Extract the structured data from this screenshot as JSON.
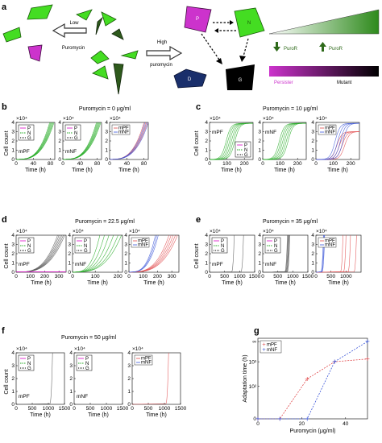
{
  "panel_labels": {
    "a": "a",
    "b": "b",
    "c": "c",
    "d": "d",
    "e": "e",
    "f": "f",
    "g": "g"
  },
  "schematic": {
    "low_label": "Low",
    "low_sub": "Puromycin",
    "high_label": "High",
    "high_sub": "puromycin",
    "cell_p": "P",
    "cell_n": "N",
    "cell_d": "D",
    "cell_g": "G",
    "puror_down": "PuroR",
    "puror_up": "PuroR",
    "persister": "Persister",
    "mutant": "Mutant",
    "colors": {
      "green": "#44dd22",
      "magenta": "#cc33cc",
      "navy": "#1a2f6b",
      "dark_green": "#2e5a1c",
      "black": "#000000"
    }
  },
  "legend": {
    "p": "P",
    "n": "N",
    "g": "G",
    "mpf": "mPF",
    "mnf": "mNF"
  },
  "labels": {
    "cell_count": "Cell count",
    "time": "Time (h)",
    "x104": "×10⁴",
    "mpf_lbl": "mPF",
    "mnf_lbl": "mNF",
    "adaptation": "Adaptation time (h)",
    "puromycin_axis": "Puromycin (μg/ml)"
  },
  "chart_data": [
    {
      "panel": "b",
      "type": "line",
      "title": "Puromycin = 0 μg/ml",
      "subplots": [
        {
          "name": "mPF",
          "xlim": [
            0,
            90
          ],
          "xticks": [
            0,
            40,
            80
          ],
          "ylim": [
            0,
            4
          ],
          "yticks": [
            0,
            1,
            2,
            3,
            4
          ],
          "series": [
            {
              "name": "G",
              "color": "#22aa22",
              "shape": "exp",
              "end_x": [
                78,
                80,
                82,
                84,
                86,
                88
              ]
            }
          ]
        },
        {
          "name": "mNF",
          "xlim": [
            0,
            90
          ],
          "xticks": [
            0,
            40,
            80
          ],
          "ylim": [
            0,
            4
          ],
          "yticks": [
            0,
            1,
            2,
            3,
            4
          ],
          "series": [
            {
              "name": "G",
              "color": "#22aa22",
              "shape": "exp",
              "end_x": [
                78,
                80,
                82,
                84,
                86,
                88
              ]
            }
          ]
        },
        {
          "name": "compare",
          "xlim": [
            0,
            90
          ],
          "xticks": [
            0,
            40,
            80
          ],
          "ylim": [
            0,
            4
          ],
          "yticks": [
            0,
            1,
            2,
            3,
            4
          ],
          "series": [
            {
              "name": "mPF",
              "color": "#e0484a",
              "shape": "exp",
              "end_x": [
                80,
                84,
                88
              ]
            },
            {
              "name": "mNF",
              "color": "#3a55d8",
              "shape": "exp",
              "end_x": [
                82,
                86,
                90
              ]
            }
          ]
        }
      ]
    },
    {
      "panel": "c",
      "type": "line",
      "title": "Puromycin = 10 μg/ml",
      "subplots": [
        {
          "name": "mPF",
          "xlim": [
            0,
            250
          ],
          "xticks": [
            0,
            100,
            200
          ],
          "ylim": [
            0,
            4
          ],
          "yticks": [
            0,
            1,
            2,
            3,
            4
          ],
          "series": [
            {
              "name": "G",
              "color": "#22aa22",
              "shape": "sigmoid",
              "plateau": 3.9,
              "mid_x": [
                95,
                105,
                115,
                125,
                135,
                145
              ]
            }
          ]
        },
        {
          "name": "mNF",
          "xlim": [
            0,
            250
          ],
          "xticks": [
            0,
            100,
            200
          ],
          "ylim": [
            0,
            4
          ],
          "yticks": [
            0,
            1,
            2,
            3,
            4
          ],
          "series": [
            {
              "name": "G",
              "color": "#22aa22",
              "shape": "sigmoid",
              "plateau": 3.9,
              "mid_x": [
                95,
                105,
                115,
                125,
                135,
                145
              ]
            }
          ]
        },
        {
          "name": "compare",
          "xlim": [
            0,
            250
          ],
          "xticks": [
            0,
            100,
            200
          ],
          "ylim": [
            0,
            4
          ],
          "yticks": [
            0,
            1,
            2,
            3,
            4
          ],
          "series": [
            {
              "name": "mPF",
              "color": "#e0484a",
              "shape": "sigmoid",
              "plateau": 3.0,
              "mid_x": [
                120,
                135,
                150,
                165
              ]
            },
            {
              "name": "mNF",
              "color": "#3a55d8",
              "shape": "sigmoid",
              "plateau": 3.9,
              "mid_x": [
                110,
                125,
                140,
                155
              ]
            }
          ]
        }
      ]
    },
    {
      "panel": "d",
      "type": "line",
      "title": "Puromycin = 22.5 μg/ml",
      "subplots": [
        {
          "name": "mPF",
          "xlim": [
            0,
            350
          ],
          "xticks": [
            0,
            100,
            200,
            300
          ],
          "ylim": [
            0,
            4
          ],
          "yticks": [
            0,
            1,
            2,
            3,
            4
          ],
          "series": [
            {
              "name": "G",
              "color": "#555555",
              "shape": "exp",
              "end_x": [
                290,
                300,
                310,
                320,
                330,
                340
              ]
            },
            {
              "name": "P",
              "color": "#dd22cc",
              "shape": "flat",
              "level": 0.05
            }
          ]
        },
        {
          "name": "mNF",
          "xlim": [
            0,
            220
          ],
          "xticks": [
            0,
            100,
            200
          ],
          "ylim": [
            0,
            4
          ],
          "yticks": [
            0,
            1,
            2,
            3,
            4
          ],
          "series": [
            {
              "name": "G",
              "color": "#22aa22",
              "shape": "exp",
              "end_x": [
                120,
                140,
                160,
                180,
                200,
                215
              ]
            }
          ]
        },
        {
          "name": "compare",
          "xlim": [
            0,
            350
          ],
          "xticks": [
            0,
            100,
            200,
            300
          ],
          "ylim": [
            0,
            4
          ],
          "yticks": [
            0,
            1,
            2,
            3,
            4
          ],
          "series": [
            {
              "name": "mPF",
              "color": "#e0484a",
              "shape": "exp",
              "end_x": [
                280,
                295,
                310,
                325,
                340
              ]
            },
            {
              "name": "mNF",
              "color": "#3a55d8",
              "shape": "exp",
              "end_x": [
                185,
                195,
                205
              ]
            }
          ]
        }
      ]
    },
    {
      "panel": "e",
      "type": "line",
      "title": "Puromycin = 35 μg/ml",
      "subplots": [
        {
          "name": "mPF",
          "xlim": [
            0,
            1500
          ],
          "xticks": [
            0,
            500,
            1000,
            1500
          ],
          "ylim": [
            0,
            4
          ],
          "yticks": [
            0,
            1,
            2,
            3,
            4
          ],
          "series": [
            {
              "name": "G",
              "color": "#555555",
              "shape": "spike",
              "end_x": [
                820,
                1130
              ]
            }
          ]
        },
        {
          "name": "mNF",
          "xlim": [
            0,
            1500
          ],
          "xticks": [
            0,
            500,
            1000,
            1500
          ],
          "ylim": [
            0,
            4
          ],
          "yticks": [
            0,
            1,
            2,
            3,
            4
          ],
          "series": [
            {
              "name": "G",
              "color": "#555555",
              "shape": "spike",
              "end_x": [
                820,
                840,
                860,
                880,
                900
              ]
            }
          ]
        },
        {
          "name": "compare",
          "xlim": [
            0,
            1500
          ],
          "xticks": [
            0,
            500,
            1000
          ],
          "ylim": [
            0,
            4
          ],
          "yticks": [
            0,
            1,
            2,
            3,
            4
          ],
          "series": [
            {
              "name": "mPF",
              "color": "#e0484a",
              "shape": "spike",
              "end_x": [
                900,
                1000,
                1150,
                1350
              ]
            },
            {
              "name": "mNF",
              "color": "#3a55d8",
              "shape": "spike",
              "end_x": [
                250,
                270,
                290
              ]
            }
          ]
        }
      ]
    },
    {
      "panel": "f",
      "type": "line",
      "title": "Puromycin = 50 μg/ml",
      "subplots": [
        {
          "name": "mPF",
          "xlim": [
            0,
            1500
          ],
          "xticks": [
            0,
            500,
            1000,
            1500
          ],
          "ylim": [
            0,
            4
          ],
          "yticks": [
            0,
            1,
            2,
            3,
            4
          ],
          "series": [
            {
              "name": "G",
              "color": "#555555",
              "shape": "spike",
              "end_x": [
                1130
              ]
            }
          ]
        },
        {
          "name": "mNF",
          "xlim": [
            0,
            1500
          ],
          "xticks": [
            0,
            500,
            1000,
            1500
          ],
          "ylim": [
            0,
            4
          ],
          "yticks": [
            0,
            1,
            2,
            3,
            4
          ],
          "series": []
        },
        {
          "name": "compare",
          "xlim": [
            0,
            1500
          ],
          "xticks": [
            0,
            500,
            1000,
            1500
          ],
          "ylim": [
            0,
            4
          ],
          "yticks": [
            0,
            1,
            2,
            3,
            4
          ],
          "series": [
            {
              "name": "mPF",
              "color": "#e0484a",
              "shape": "spike",
              "end_x": [
                1130
              ]
            }
          ]
        }
      ]
    },
    {
      "panel": "g",
      "type": "scatter",
      "xlabel": "Puromycin (μg/ml)",
      "ylabel": "Adaptation time (h)",
      "xlim": [
        0,
        50
      ],
      "xticks": [
        0,
        20,
        40
      ],
      "ylog": true,
      "series": [
        {
          "name": "mPF",
          "color": "#e0484a",
          "x": [
            0,
            10,
            22.5,
            35,
            50
          ],
          "y": [
            0,
            0,
            "200",
            "1000",
            "1300"
          ]
        },
        {
          "name": "mNF",
          "color": "#3a55d8",
          "x": [
            0,
            10,
            22.5,
            35,
            50
          ],
          "y": [
            0,
            0,
            0,
            "1000",
            "∞"
          ]
        }
      ]
    }
  ]
}
